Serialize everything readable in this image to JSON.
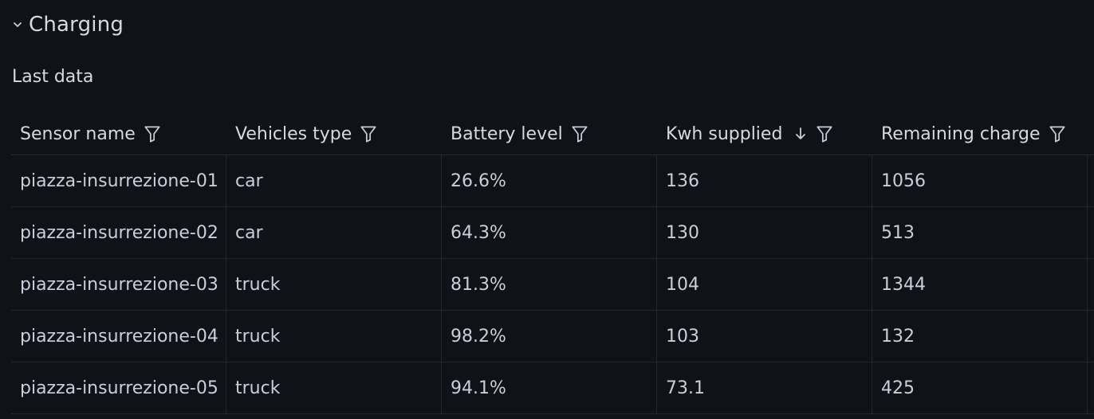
{
  "row": {
    "title": "Charging",
    "icon": "chevron-down-icon"
  },
  "panel": {
    "title": "Last data"
  },
  "table": {
    "columns": [
      {
        "label": "Sensor name",
        "filter_icon": "filter-icon"
      },
      {
        "label": "Vehicles type",
        "filter_icon": "filter-icon"
      },
      {
        "label": "Battery level",
        "filter_icon": "filter-icon"
      },
      {
        "label": "Kwh supplied",
        "sort_icon": "arrow-down-icon",
        "filter_icon": "filter-icon"
      },
      {
        "label": "Remaining charge",
        "filter_icon": "filter-icon"
      }
    ],
    "rows": [
      {
        "sensor": "piazza-insurrezione-01",
        "type": "car",
        "battery": "26.6%",
        "kwh": "136",
        "remaining": "1056"
      },
      {
        "sensor": "piazza-insurrezione-02",
        "type": "car",
        "battery": "64.3%",
        "kwh": "130",
        "remaining": "513"
      },
      {
        "sensor": "piazza-insurrezione-03",
        "type": "truck",
        "battery": "81.3%",
        "kwh": "104",
        "remaining": "1344"
      },
      {
        "sensor": "piazza-insurrezione-04",
        "type": "truck",
        "battery": "98.2%",
        "kwh": "103",
        "remaining": "132"
      },
      {
        "sensor": "piazza-insurrezione-05",
        "type": "truck",
        "battery": "94.1%",
        "kwh": "73.1",
        "remaining": "425"
      }
    ]
  },
  "colors": {
    "background": "#111217",
    "text": "#ccccdc",
    "border": "#24262e"
  }
}
